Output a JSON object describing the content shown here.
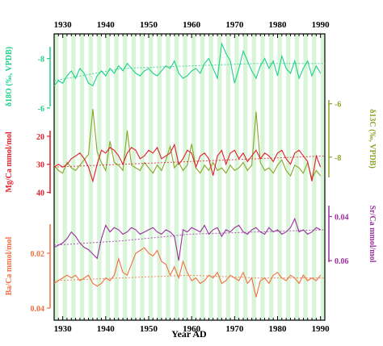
{
  "chart_data": {
    "type": "line",
    "xlabel": "Year AD",
    "xlim": [
      1928,
      1991
    ],
    "x_ticks": [
      "1930",
      "1940",
      "1950",
      "1960",
      "1970",
      "1980",
      "1990"
    ],
    "grid": "vertical light-green bands (annual)",
    "panels": [
      {
        "id": "d18o",
        "ylabel": "δ18O (‰, VPDB)",
        "axis_side": "left",
        "color": "#1fd08a",
        "ylim": [
          -8.8,
          -5.8
        ],
        "inverted": true,
        "tick_labels": [
          "-8",
          "-6"
        ],
        "tick_values": [
          -8,
          -6
        ],
        "x": [
          1928,
          1929,
          1930,
          1931,
          1932,
          1933,
          1934,
          1935,
          1936,
          1937,
          1938,
          1939,
          1940,
          1941,
          1942,
          1943,
          1944,
          1945,
          1946,
          1947,
          1948,
          1949,
          1950,
          1951,
          1952,
          1953,
          1954,
          1955,
          1956,
          1957,
          1958,
          1959,
          1960,
          1961,
          1962,
          1963,
          1964,
          1965,
          1966,
          1967,
          1968,
          1969,
          1970,
          1971,
          1972,
          1973,
          1974,
          1975,
          1976,
          1977,
          1978,
          1979,
          1980,
          1981,
          1982,
          1983,
          1984,
          1985,
          1986,
          1987,
          1988,
          1989,
          1990
        ],
        "values": [
          -6.9,
          -7.1,
          -7.0,
          -7.3,
          -7.5,
          -7.2,
          -7.6,
          -7.4,
          -7.0,
          -6.9,
          -7.3,
          -7.5,
          -7.3,
          -7.6,
          -7.4,
          -7.7,
          -7.5,
          -7.8,
          -7.6,
          -7.4,
          -7.3,
          -7.5,
          -7.6,
          -7.4,
          -7.3,
          -7.5,
          -7.7,
          -7.6,
          -7.9,
          -7.4,
          -7.2,
          -7.3,
          -7.5,
          -7.6,
          -7.4,
          -7.8,
          -8.0,
          -7.6,
          -7.2,
          -8.6,
          -8.2,
          -7.9,
          -7.0,
          -7.6,
          -8.3,
          -7.9,
          -7.5,
          -7.2,
          -7.7,
          -8.0,
          -7.6,
          -7.9,
          -7.3,
          -8.1,
          -7.6,
          -7.4,
          -7.9,
          -7.2,
          -7.6,
          -7.9,
          -7.3,
          -7.7,
          -7.4
        ],
        "trend": [
          -7.1,
          -7.6,
          -7.7,
          -7.8,
          -7.8
        ]
      },
      {
        "id": "d13c",
        "ylabel": "δ13C (‰, VPDB)",
        "axis_side": "right",
        "color": "#8aa628",
        "ylim": [
          -9,
          -5.5
        ],
        "tick_labels": [
          "-8",
          "-6"
        ],
        "tick_values": [
          -8,
          -6
        ],
        "x": [
          1928,
          1929,
          1930,
          1931,
          1932,
          1933,
          1934,
          1935,
          1936,
          1937,
          1938,
          1939,
          1940,
          1941,
          1942,
          1943,
          1944,
          1945,
          1946,
          1947,
          1948,
          1949,
          1950,
          1951,
          1952,
          1953,
          1954,
          1955,
          1956,
          1957,
          1958,
          1959,
          1960,
          1961,
          1962,
          1963,
          1964,
          1965,
          1966,
          1967,
          1968,
          1969,
          1970,
          1971,
          1972,
          1973,
          1974,
          1975,
          1976,
          1977,
          1978,
          1979,
          1980,
          1981,
          1982,
          1983,
          1984,
          1985,
          1986,
          1987,
          1988,
          1989,
          1990
        ],
        "values": [
          -8.3,
          -8.5,
          -8.6,
          -8.2,
          -8.4,
          -8.5,
          -8.3,
          -8.1,
          -7.9,
          -6.2,
          -7.8,
          -8.2,
          -8.5,
          -7.4,
          -8.2,
          -8.3,
          -8.5,
          -7.0,
          -8.3,
          -8.4,
          -8.5,
          -8.2,
          -8.4,
          -8.6,
          -8.3,
          -8.5,
          -8.1,
          -7.6,
          -8.4,
          -8.2,
          -8.5,
          -8.3,
          -7.5,
          -8.4,
          -8.6,
          -8.3,
          -8.5,
          -8.2,
          -8.5,
          -8.4,
          -8.6,
          -8.3,
          -8.5,
          -8.4,
          -8.2,
          -8.5,
          -8.3,
          -6.3,
          -8.2,
          -8.5,
          -8.4,
          -8.6,
          -8.3,
          -8.1,
          -8.5,
          -8.7,
          -8.3,
          -8.4,
          -8.6,
          -8.2,
          -8.8,
          -8.5,
          -8.7
        ]
      },
      {
        "id": "mgca",
        "ylabel": "Mg/Ca mmol/mol",
        "axis_side": "left",
        "color": "#e0202a",
        "ylim": [
          18,
          41
        ],
        "inverted": true,
        "tick_labels": [
          "20",
          "30",
          "40"
        ],
        "tick_values": [
          20,
          30,
          40
        ],
        "x": [
          1928,
          1929,
          1930,
          1931,
          1932,
          1933,
          1934,
          1935,
          1936,
          1937,
          1938,
          1939,
          1940,
          1941,
          1942,
          1943,
          1944,
          1945,
          1946,
          1947,
          1948,
          1949,
          1950,
          1951,
          1952,
          1953,
          1954,
          1955,
          1956,
          1957,
          1958,
          1959,
          1960,
          1961,
          1962,
          1963,
          1964,
          1965,
          1966,
          1967,
          1968,
          1969,
          1970,
          1971,
          1972,
          1973,
          1974,
          1975,
          1976,
          1977,
          1978,
          1979,
          1980,
          1981,
          1982,
          1983,
          1984,
          1985,
          1986,
          1987,
          1988,
          1989,
          1990
        ],
        "values": [
          31,
          30,
          31,
          30,
          28,
          27,
          26,
          28,
          31,
          36,
          30,
          25,
          26,
          24,
          25,
          27,
          30,
          26,
          24,
          25,
          28,
          27,
          25,
          26,
          24,
          28,
          27,
          26,
          23,
          30,
          28,
          25,
          26,
          31,
          27,
          26,
          28,
          34,
          27,
          25,
          30,
          26,
          25,
          28,
          26,
          29,
          27,
          25,
          28,
          26,
          27,
          29,
          26,
          25,
          28,
          30,
          26,
          25,
          27,
          29,
          36,
          27,
          31
        ],
        "trend": [
          31,
          30,
          29,
          28,
          27
        ]
      },
      {
        "id": "srca",
        "ylabel": "Sr/Ca mmol/mol",
        "axis_side": "right",
        "color": "#9b2fa0",
        "ylim": [
          0.0325,
          0.0625
        ],
        "inverted": true,
        "tick_labels": [
          "0.04",
          "0.06"
        ],
        "tick_values": [
          0.04,
          0.06
        ],
        "x": [
          1928,
          1929,
          1930,
          1931,
          1932,
          1933,
          1934,
          1935,
          1936,
          1937,
          1938,
          1939,
          1940,
          1941,
          1942,
          1943,
          1944,
          1945,
          1946,
          1947,
          1948,
          1949,
          1950,
          1951,
          1952,
          1953,
          1954,
          1955,
          1956,
          1957,
          1958,
          1959,
          1960,
          1961,
          1962,
          1963,
          1964,
          1965,
          1966,
          1967,
          1968,
          1969,
          1970,
          1971,
          1972,
          1973,
          1974,
          1975,
          1976,
          1977,
          1978,
          1979,
          1980,
          1981,
          1982,
          1983,
          1984,
          1985,
          1986,
          1987,
          1988,
          1989,
          1990
        ],
        "values": [
          0.054,
          0.053,
          0.052,
          0.05,
          0.047,
          0.049,
          0.052,
          0.054,
          0.055,
          0.057,
          0.059,
          0.05,
          0.044,
          0.047,
          0.045,
          0.046,
          0.048,
          0.047,
          0.045,
          0.046,
          0.048,
          0.047,
          0.046,
          0.045,
          0.047,
          0.048,
          0.046,
          0.047,
          0.049,
          0.06,
          0.046,
          0.047,
          0.045,
          0.046,
          0.047,
          0.044,
          0.048,
          0.046,
          0.045,
          0.049,
          0.046,
          0.047,
          0.045,
          0.044,
          0.047,
          0.048,
          0.046,
          0.045,
          0.047,
          0.048,
          0.045,
          0.047,
          0.046,
          0.048,
          0.047,
          0.045,
          0.041,
          0.047,
          0.046,
          0.048,
          0.047,
          0.045,
          0.046
        ],
        "trend": [
          0.053,
          0.051,
          0.048,
          0.047,
          0.046
        ]
      },
      {
        "id": "baca",
        "ylabel": "Ba/Ca mmol/mol",
        "axis_side": "left",
        "color": "#f07040",
        "ylim": [
          0.01,
          0.04
        ],
        "inverted": true,
        "tick_labels": [
          "0.02",
          "0.04"
        ],
        "tick_values": [
          0.02,
          0.04
        ],
        "x": [
          1928,
          1929,
          1930,
          1931,
          1932,
          1933,
          1934,
          1935,
          1936,
          1937,
          1938,
          1939,
          1940,
          1941,
          1942,
          1943,
          1944,
          1945,
          1946,
          1947,
          1948,
          1949,
          1950,
          1951,
          1952,
          1953,
          1954,
          1955,
          1956,
          1957,
          1958,
          1959,
          1960,
          1961,
          1962,
          1963,
          1964,
          1965,
          1966,
          1967,
          1968,
          1969,
          1970,
          1971,
          1972,
          1973,
          1974,
          1975,
          1976,
          1977,
          1978,
          1979,
          1980,
          1981,
          1982,
          1983,
          1984,
          1985,
          1986,
          1987,
          1988,
          1989,
          1990
        ],
        "values": [
          0.031,
          0.03,
          0.029,
          0.028,
          0.029,
          0.028,
          0.03,
          0.029,
          0.028,
          0.031,
          0.032,
          0.031,
          0.029,
          0.03,
          0.028,
          0.022,
          0.027,
          0.028,
          0.024,
          0.02,
          0.019,
          0.018,
          0.02,
          0.021,
          0.019,
          0.023,
          0.024,
          0.028,
          0.025,
          0.029,
          0.023,
          0.027,
          0.03,
          0.029,
          0.031,
          0.03,
          0.028,
          0.029,
          0.027,
          0.031,
          0.03,
          0.028,
          0.029,
          0.03,
          0.027,
          0.031,
          0.029,
          0.036,
          0.03,
          0.029,
          0.031,
          0.028,
          0.027,
          0.029,
          0.03,
          0.028,
          0.029,
          0.031,
          0.028,
          0.03,
          0.029,
          0.03,
          0.028
        ],
        "trend": [
          0.03,
          0.029,
          0.028,
          0.029,
          0.029
        ]
      }
    ]
  }
}
